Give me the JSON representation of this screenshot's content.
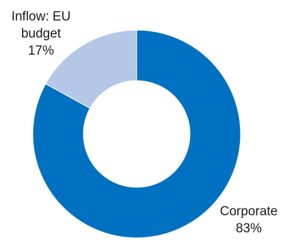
{
  "chart_data": {
    "type": "pie",
    "style": "donut",
    "title": "",
    "series": [
      {
        "values": [
          17,
          83
        ],
        "categories": [
          "Inflow: EU budget",
          "Corporate"
        ]
      }
    ],
    "slices": [
      {
        "name": "Inflow: EU budget",
        "value": 17,
        "label_lines": [
          "Inflow: EU",
          "budget",
          "17%"
        ],
        "color": "#b4c7e7"
      },
      {
        "name": "Corporate",
        "value": 83,
        "label_lines": [
          "Corporate",
          "83%"
        ],
        "color": "#0070c0"
      }
    ],
    "legend": "none",
    "grid": false
  }
}
